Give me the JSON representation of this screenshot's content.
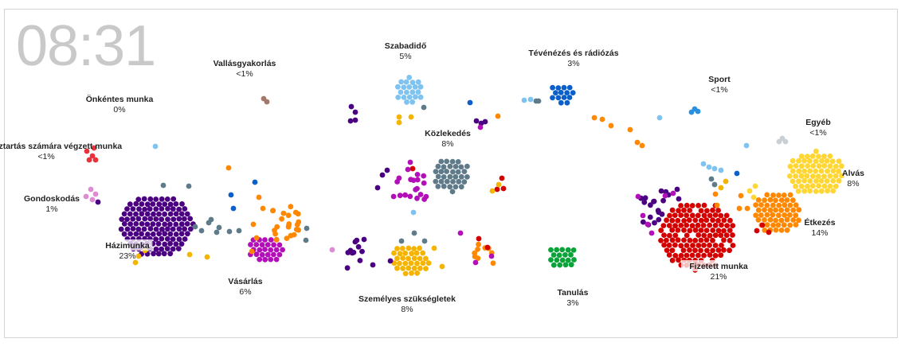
{
  "clock": "08:31",
  "colors": {
    "housework": "#4b0082",
    "shopping": "#b30fb8",
    "personal": "#f5b400",
    "leisure": "#7fc3f0",
    "commute": "#5f7b8a",
    "tv": "#0a60c8",
    "work": "#d40000",
    "eating": "#ff8800",
    "sleep": "#ffd633",
    "study": "#0aa33a",
    "care": "#e08ad6",
    "other_household": "#e8323a",
    "religion": "#a3786a",
    "other": "#c8d0d6",
    "sport": "#2a8fe0"
  },
  "activities": [
    {
      "id": "hazimunka",
      "label": "Házimunka",
      "value": "23%",
      "color_key": "housework"
    },
    {
      "id": "vasarlas",
      "label": "Vásárlás",
      "value": "6%",
      "color_key": "shopping"
    },
    {
      "id": "szemelyes",
      "label": "Személyes szükségletek",
      "value": "8%",
      "color_key": "personal"
    },
    {
      "id": "szabadido",
      "label": "Szabadidő",
      "value": "5%",
      "color_key": "leisure"
    },
    {
      "id": "kozlekedes",
      "label": "Közlekedés",
      "value": "8%",
      "color_key": "commute"
    },
    {
      "id": "teve",
      "label": "Tévénézés és rádiózás",
      "value": "3%",
      "color_key": "tv"
    },
    {
      "id": "fizetett",
      "label": "Fizetett munka",
      "value": "21%",
      "color_key": "work"
    },
    {
      "id": "etkezes",
      "label": "Étkezés",
      "value": "14%",
      "color_key": "eating"
    },
    {
      "id": "alvas",
      "label": "Alvás",
      "value": "8%",
      "color_key": "sleep"
    },
    {
      "id": "tanulas",
      "label": "Tanulás",
      "value": "3%",
      "color_key": "study"
    },
    {
      "id": "gondoskodas",
      "label": "Gondoskodás",
      "value": "1%",
      "color_key": "care"
    },
    {
      "id": "mashaz",
      "label": "Más háztartás számára végzett munka",
      "value": "<1%",
      "color_key": "other_household"
    },
    {
      "id": "onkentes",
      "label": "Önkéntes munka",
      "value": "0%",
      "color_key": "other_household"
    },
    {
      "id": "vallas",
      "label": "Vallásgyakorlás",
      "value": "<1%",
      "color_key": "religion"
    },
    {
      "id": "sport",
      "label": "Sport",
      "value": "<1%",
      "color_key": "sport"
    },
    {
      "id": "egyeb",
      "label": "Egyéb",
      "value": "<1%",
      "color_key": "other"
    }
  ]
}
